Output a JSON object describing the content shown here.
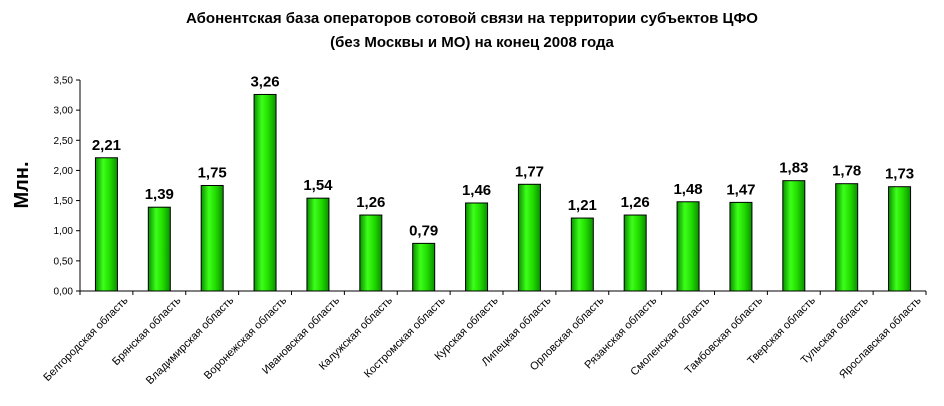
{
  "chart_data": {
    "type": "bar",
    "title_lines": [
      "Абонентская база операторов сотовой связи на территории субъектов ЦФО",
      "(без Москвы и МО) на конец 2008 года"
    ],
    "ylabel": "Млн.",
    "xlabel": "",
    "ylim": [
      0,
      3.5
    ],
    "ytick_step": 0.5,
    "yticks": [
      "0,00",
      "0,50",
      "1,00",
      "1,50",
      "2,00",
      "2,50",
      "3,00",
      "3,50"
    ],
    "grid": false,
    "categories": [
      "Белгородская область",
      "Брянская область",
      "Владимирская область",
      "Воронежская область",
      "Ивановская область",
      "Калужская область",
      "Костромская область",
      "Курская область",
      "Липецкая область",
      "Орловская область",
      "Рязанская область",
      "Смоленская область",
      "Тамбовская область",
      "Тверская область",
      "Тульская область",
      "Ярославская область"
    ],
    "values": [
      2.21,
      1.39,
      1.75,
      3.26,
      1.54,
      1.26,
      0.79,
      1.46,
      1.77,
      1.21,
      1.26,
      1.48,
      1.47,
      1.83,
      1.78,
      1.73
    ],
    "value_labels": [
      "2,21",
      "1,39",
      "1,75",
      "3,26",
      "1,54",
      "1,26",
      "0,79",
      "1,46",
      "1,77",
      "1,21",
      "1,26",
      "1,48",
      "1,47",
      "1,83",
      "1,78",
      "1,73"
    ],
    "colors": {
      "bar": "#22cc00",
      "bar_stroke": "#000000",
      "axis": "#000000"
    }
  }
}
